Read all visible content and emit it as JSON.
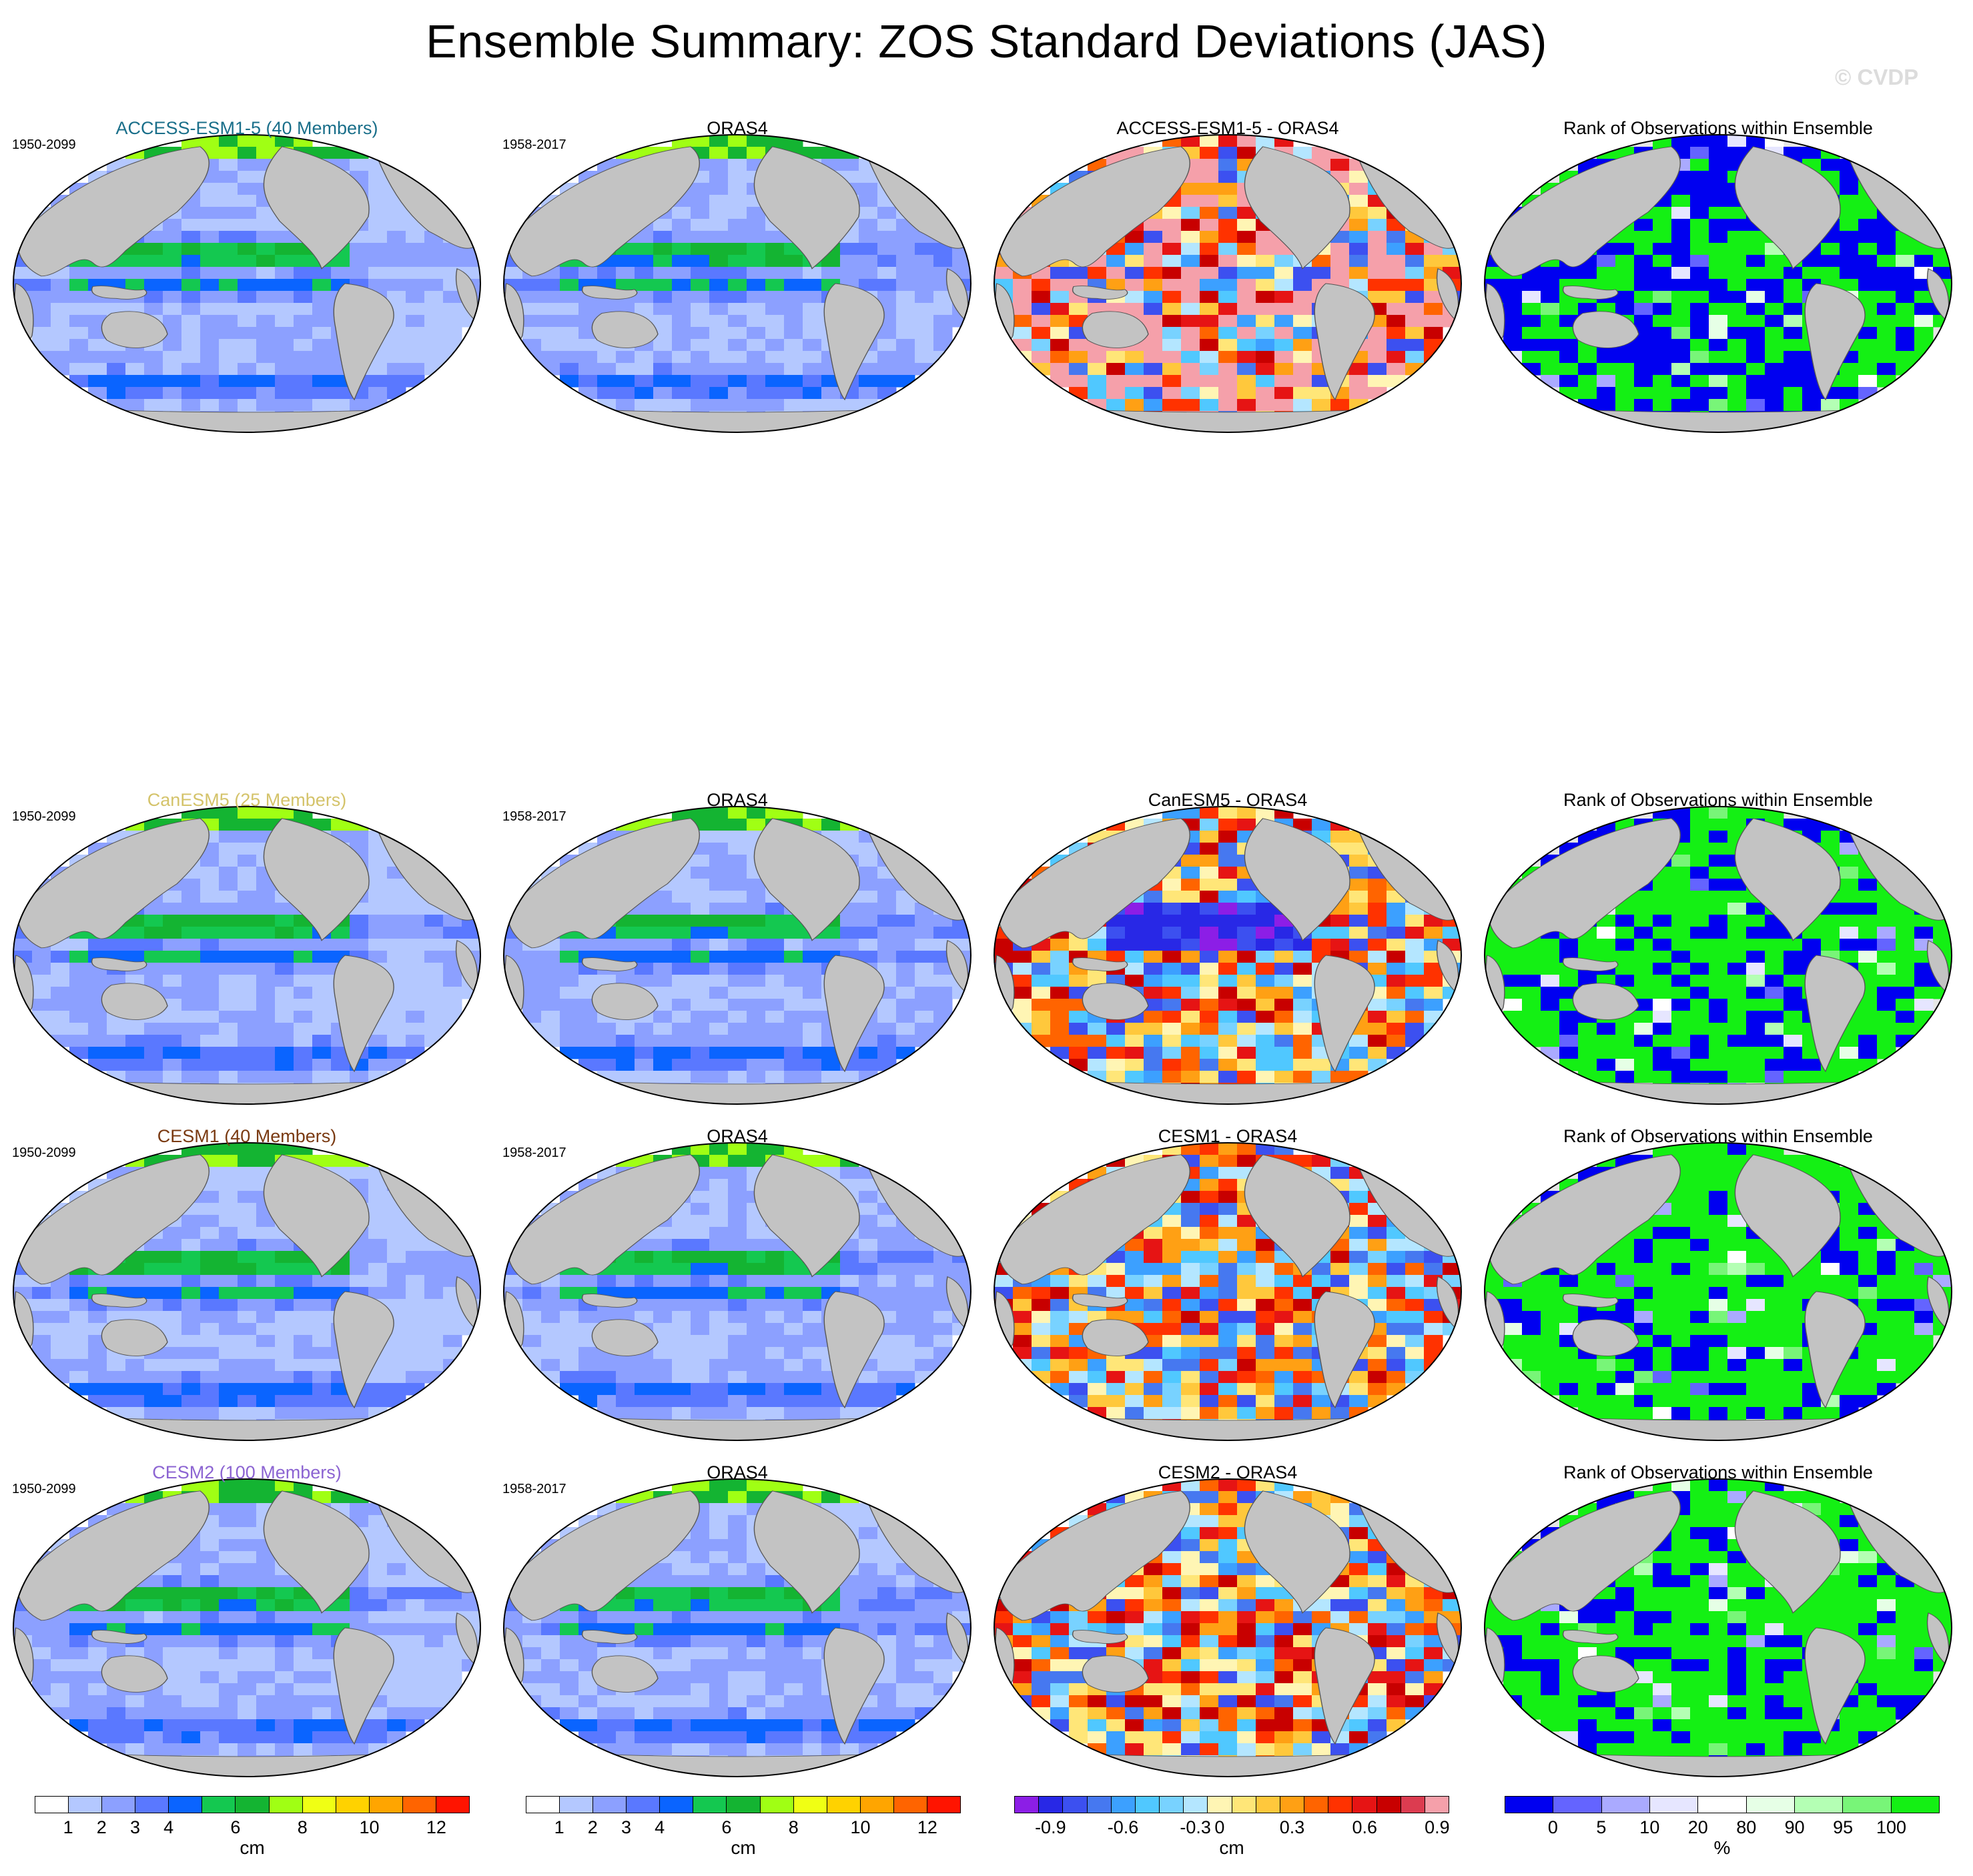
{
  "title": "Ensemble Summary: ZOS Standard Deviations (JAS)",
  "watermark": "© CVDP",
  "colors": {
    "land": "#c3c3c3",
    "ocean_default": "#ffffff",
    "grid_frame": "#000000"
  },
  "rows": [
    {
      "model": "ACCESS-ESM1-5 (40 Members)",
      "model_color": "#1a6f8a",
      "model_years": "1950-2099",
      "obs_title": "ORAS4",
      "obs_years": "1958-2017",
      "diff_title": "ACCESS-ESM1-5 - ORAS4",
      "rank_title": "Rank of Observations within Ensemble"
    },
    {
      "model": "CanESM5 (25 Members)",
      "model_color": "#d4c36a",
      "model_years": "1950-2099",
      "obs_title": "ORAS4",
      "obs_years": "1958-2017",
      "diff_title": "CanESM5 - ORAS4",
      "rank_title": "Rank of Observations within Ensemble"
    },
    {
      "model": "CESM1 (40 Members)",
      "model_color": "#7a3a12",
      "model_years": "1950-2099",
      "obs_title": "ORAS4",
      "obs_years": "1958-2017",
      "diff_title": "CESM1 - ORAS4",
      "rank_title": "Rank of Observations within Ensemble"
    },
    {
      "model": "CESM2 (100 Members)",
      "model_color": "#8c64d2",
      "model_years": "1950-2099",
      "obs_title": "ORAS4",
      "obs_years": "1958-2017",
      "diff_title": "CESM2 - ORAS4",
      "rank_title": "Rank of Observations within Ensemble"
    }
  ],
  "colorbars": [
    {
      "id": "std",
      "unit": "cm",
      "colors": [
        "#ffffff",
        "#b4c8ff",
        "#8ca0ff",
        "#5a78ff",
        "#0a64ff",
        "#14c850",
        "#14b432",
        "#a0ff14",
        "#f0ff14",
        "#ffd200",
        "#ffa500",
        "#ff6400",
        "#ff1400"
      ],
      "ticks": [
        "1",
        "2",
        "3",
        "4",
        "6",
        "8",
        "10",
        "12"
      ]
    },
    {
      "id": "std_obs",
      "unit": "cm",
      "colors": [
        "#ffffff",
        "#b4c8ff",
        "#8ca0ff",
        "#5a78ff",
        "#0a64ff",
        "#14c850",
        "#14b432",
        "#a0ff14",
        "#f0ff14",
        "#ffd200",
        "#ffa500",
        "#ff6400",
        "#ff1400"
      ],
      "ticks": [
        "1",
        "2",
        "3",
        "4",
        "6",
        "8",
        "10",
        "12"
      ]
    },
    {
      "id": "diff",
      "unit": "cm",
      "colors": [
        "#8c1ee6",
        "#2828e6",
        "#3c50f0",
        "#4678f0",
        "#3ca0ff",
        "#50c8ff",
        "#78d2ff",
        "#b4e6ff",
        "#fff5b4",
        "#ffe678",
        "#ffc83c",
        "#ffa014",
        "#ff6400",
        "#ff3200",
        "#e61414",
        "#c80000",
        "#dc3c50",
        "#f5a0aa"
      ],
      "ticks": [
        "-0.9",
        "-0.6",
        "-0.3",
        "0",
        "0.3",
        "0.6",
        "0.9"
      ]
    },
    {
      "id": "rank",
      "unit": "%",
      "colors": [
        "#0000f0",
        "#6464ff",
        "#aaaaff",
        "#e6e6ff",
        "#ffffff",
        "#e6ffe6",
        "#b4ffb4",
        "#78f578",
        "#14f014"
      ],
      "ticks": [
        "0",
        "5",
        "10",
        "20",
        "80",
        "90",
        "95",
        "100"
      ]
    }
  ]
}
